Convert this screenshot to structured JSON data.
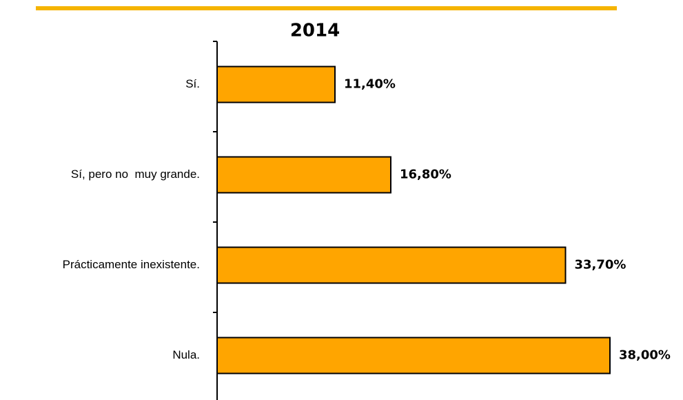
{
  "chart_data": {
    "type": "bar",
    "orientation": "horizontal",
    "title": "2014",
    "categories": [
      "Sí.",
      "Sí, pero no  muy grande.",
      "Prácticamente inexistente.",
      "Nula."
    ],
    "values": [
      11.4,
      16.8,
      33.7,
      38.0
    ],
    "value_labels": [
      "11,40%",
      "16,80%",
      "33,70%",
      "38,00%"
    ],
    "color": "#ffa500"
  }
}
